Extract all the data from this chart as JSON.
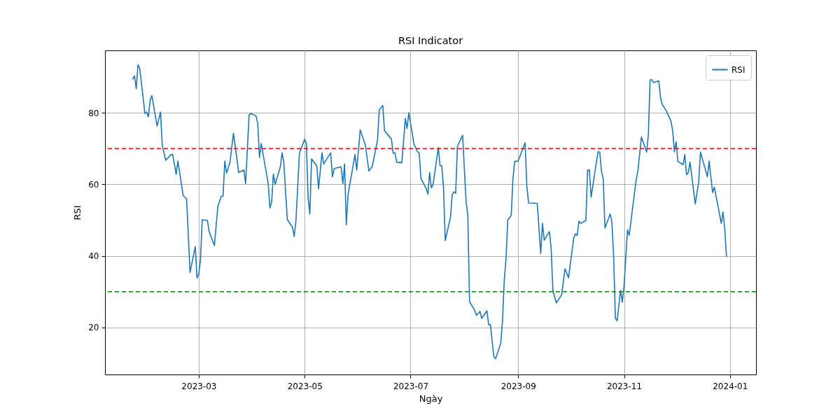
{
  "chart_data": {
    "type": "line",
    "title": "RSI Indicator",
    "xlabel": "Ngày",
    "ylabel": "RSI",
    "x": [
      "2023-01-22",
      "2023-01-23",
      "2023-01-24",
      "2023-01-25",
      "2023-01-26",
      "2023-01-29",
      "2023-01-30",
      "2023-01-31",
      "2023-02-01",
      "2023-02-02",
      "2023-02-05",
      "2023-02-07",
      "2023-02-08",
      "2023-02-10",
      "2023-02-13",
      "2023-02-14",
      "2023-02-16",
      "2023-02-17",
      "2023-02-20",
      "2023-02-22",
      "2023-02-24",
      "2023-02-27",
      "2023-02-28",
      "2023-03-01",
      "2023-03-02",
      "2023-03-03",
      "2023-03-06",
      "2023-03-07",
      "2023-03-10",
      "2023-03-12",
      "2023-03-14",
      "2023-03-15",
      "2023-03-16",
      "2023-03-17",
      "2023-03-19",
      "2023-03-21",
      "2023-03-24",
      "2023-03-27",
      "2023-03-28",
      "2023-03-30",
      "2023-03-31",
      "2023-04-03",
      "2023-04-04",
      "2023-04-05",
      "2023-04-06",
      "2023-04-10",
      "2023-04-11",
      "2023-04-12",
      "2023-04-13",
      "2023-04-14",
      "2023-04-17",
      "2023-04-18",
      "2023-04-19",
      "2023-04-21",
      "2023-04-24",
      "2023-04-25",
      "2023-04-26",
      "2023-04-28",
      "2023-05-01",
      "2023-05-02",
      "2023-05-03",
      "2023-05-04",
      "2023-05-05",
      "2023-05-08",
      "2023-05-09",
      "2023-05-11",
      "2023-05-12",
      "2023-05-16",
      "2023-05-17",
      "2023-05-18",
      "2023-05-22",
      "2023-05-23",
      "2023-05-24",
      "2023-05-25",
      "2023-05-26",
      "2023-05-30",
      "2023-05-31",
      "2023-06-02",
      "2023-06-05",
      "2023-06-07",
      "2023-06-09",
      "2023-06-12",
      "2023-06-13",
      "2023-06-15",
      "2023-06-16",
      "2023-06-20",
      "2023-06-21",
      "2023-06-22",
      "2023-06-23",
      "2023-06-26",
      "2023-06-28",
      "2023-06-29",
      "2023-06-30",
      "2023-07-03",
      "2023-07-05",
      "2023-07-06",
      "2023-07-07",
      "2023-07-10",
      "2023-07-11",
      "2023-07-12",
      "2023-07-13",
      "2023-07-14",
      "2023-07-17",
      "2023-07-18",
      "2023-07-19",
      "2023-07-20",
      "2023-07-21",
      "2023-07-24",
      "2023-07-25",
      "2023-07-26",
      "2023-07-27",
      "2023-07-28",
      "2023-07-31",
      "2023-08-02",
      "2023-08-03",
      "2023-08-04",
      "2023-08-07",
      "2023-08-08",
      "2023-08-10",
      "2023-08-11",
      "2023-08-14",
      "2023-08-15",
      "2023-08-16",
      "2023-08-18",
      "2023-08-19",
      "2023-08-22",
      "2023-08-23",
      "2023-08-24",
      "2023-08-25",
      "2023-08-26",
      "2023-08-28",
      "2023-08-29",
      "2023-08-30",
      "2023-09-01",
      "2023-09-05",
      "2023-09-06",
      "2023-09-07",
      "2023-09-12",
      "2023-09-14",
      "2023-09-15",
      "2023-09-16",
      "2023-09-19",
      "2023-09-20",
      "2023-09-21",
      "2023-09-23",
      "2023-09-26",
      "2023-09-28",
      "2023-09-30",
      "2023-10-03",
      "2023-10-04",
      "2023-10-05",
      "2023-10-06",
      "2023-10-07",
      "2023-10-10",
      "2023-10-11",
      "2023-10-12",
      "2023-10-13",
      "2023-10-17",
      "2023-10-18",
      "2023-10-19",
      "2023-10-20",
      "2023-10-21",
      "2023-10-24",
      "2023-10-25",
      "2023-10-26",
      "2023-10-27",
      "2023-10-28",
      "2023-10-30",
      "2023-10-31",
      "2023-11-01",
      "2023-11-03",
      "2023-11-04",
      "2023-11-06",
      "2023-11-08",
      "2023-11-09",
      "2023-11-11",
      "2023-11-14",
      "2023-11-15",
      "2023-11-16",
      "2023-11-17",
      "2023-11-18",
      "2023-11-21",
      "2023-11-22",
      "2023-11-23",
      "2023-11-25",
      "2023-11-28",
      "2023-11-29",
      "2023-11-30",
      "2023-12-01",
      "2023-12-02",
      "2023-12-05",
      "2023-12-06",
      "2023-12-07",
      "2023-12-08",
      "2023-12-09",
      "2023-12-12",
      "2023-12-14",
      "2023-12-15",
      "2023-12-19",
      "2023-12-20",
      "2023-12-22",
      "2023-12-23",
      "2023-12-27",
      "2023-12-28",
      "2023-12-29",
      "2023-12-30"
    ],
    "series": [
      {
        "name": "RSI",
        "color": "#1f77b4",
        "values": [
          89.4,
          90.3,
          86.7,
          93.4,
          92.4,
          79.8,
          80.2,
          78.9,
          83.5,
          84.8,
          76.3,
          80.2,
          70.8,
          66.7,
          68.3,
          68.3,
          62.8,
          66.5,
          56.9,
          55.9,
          35.4,
          42.6,
          33.9,
          34.9,
          38.8,
          50.1,
          49.9,
          46.8,
          42.9,
          53.8,
          56.7,
          56.7,
          66.5,
          63.1,
          66.2,
          74.3,
          63.3,
          64.0,
          60.2,
          79.4,
          79.8,
          79.1,
          76.9,
          67.5,
          71.4,
          60.2,
          53.4,
          55.1,
          62.9,
          60.0,
          64.9,
          68.8,
          66.2,
          50.2,
          48.0,
          45.4,
          49.9,
          68.7,
          72.6,
          71.4,
          56.1,
          51.7,
          67.1,
          65.1,
          58.7,
          68.8,
          65.7,
          68.8,
          62.1,
          64.4,
          64.9,
          60.2,
          65.7,
          48.7,
          57.1,
          68.3,
          64.0,
          75.2,
          70.9,
          63.7,
          65.1,
          72.4,
          80.8,
          82.0,
          75.0,
          72.6,
          68.7,
          68.8,
          66.2,
          66.0,
          78.4,
          75.6,
          80.0,
          71.2,
          69.1,
          68.8,
          61.6,
          58.8,
          57.3,
          63.3,
          59.0,
          60.0,
          70.2,
          65.2,
          65.2,
          59.0,
          44.3,
          50.8,
          57.1,
          57.9,
          57.5,
          70.6,
          73.7,
          55.1,
          51.5,
          27.2,
          24.8,
          23.4,
          24.5,
          22.6,
          24.7,
          20.8,
          20.8,
          11.8,
          11.3,
          15.7,
          22.2,
          33.3,
          39.2,
          50.0,
          51.3,
          61.6,
          66.4,
          66.5,
          71.6,
          59.4,
          54.8,
          54.7,
          40.7,
          49.1,
          44.4,
          46.8,
          42.1,
          30.4,
          26.9,
          29.1,
          36.4,
          33.9,
          45.0,
          46.2,
          45.7,
          49.7,
          49.1,
          49.9,
          64.0,
          64.0,
          56.4,
          69.1,
          69.0,
          63.6,
          61.5,
          47.8,
          51.7,
          49.4,
          39.8,
          22.6,
          21.9,
          30.4,
          27.1,
          31.7,
          47.3,
          45.8,
          53.8,
          61.3,
          63.9,
          73.2,
          69.0,
          74.0,
          89.2,
          89.2,
          88.4,
          88.9,
          84.2,
          82.3,
          80.8,
          77.7,
          75.0,
          69.1,
          71.9,
          66.4,
          65.5,
          68.3,
          62.7,
          63.3,
          66.2,
          54.5,
          60.7,
          69.0,
          62.1,
          66.5,
          57.7,
          59.2,
          49.1,
          52.3,
          47.6,
          39.9
        ]
      }
    ],
    "xlim": [
      "2023-01-06",
      "2024-01-16"
    ],
    "xticks": [
      "2023-03",
      "2023-05",
      "2023-07",
      "2023-09",
      "2023-11",
      "2024-01"
    ],
    "ylim": [
      6.9,
      97.4
    ],
    "yticks": [
      20,
      40,
      60,
      80
    ],
    "ref_lines": [
      {
        "axis": "y",
        "value": 70,
        "color": "#ff0000",
        "line_style": "dashed"
      },
      {
        "axis": "y",
        "value": 30,
        "color": "#008000",
        "line_style": "dashed"
      }
    ],
    "grid": true,
    "legend": "top right",
    "line_style": "solid"
  }
}
